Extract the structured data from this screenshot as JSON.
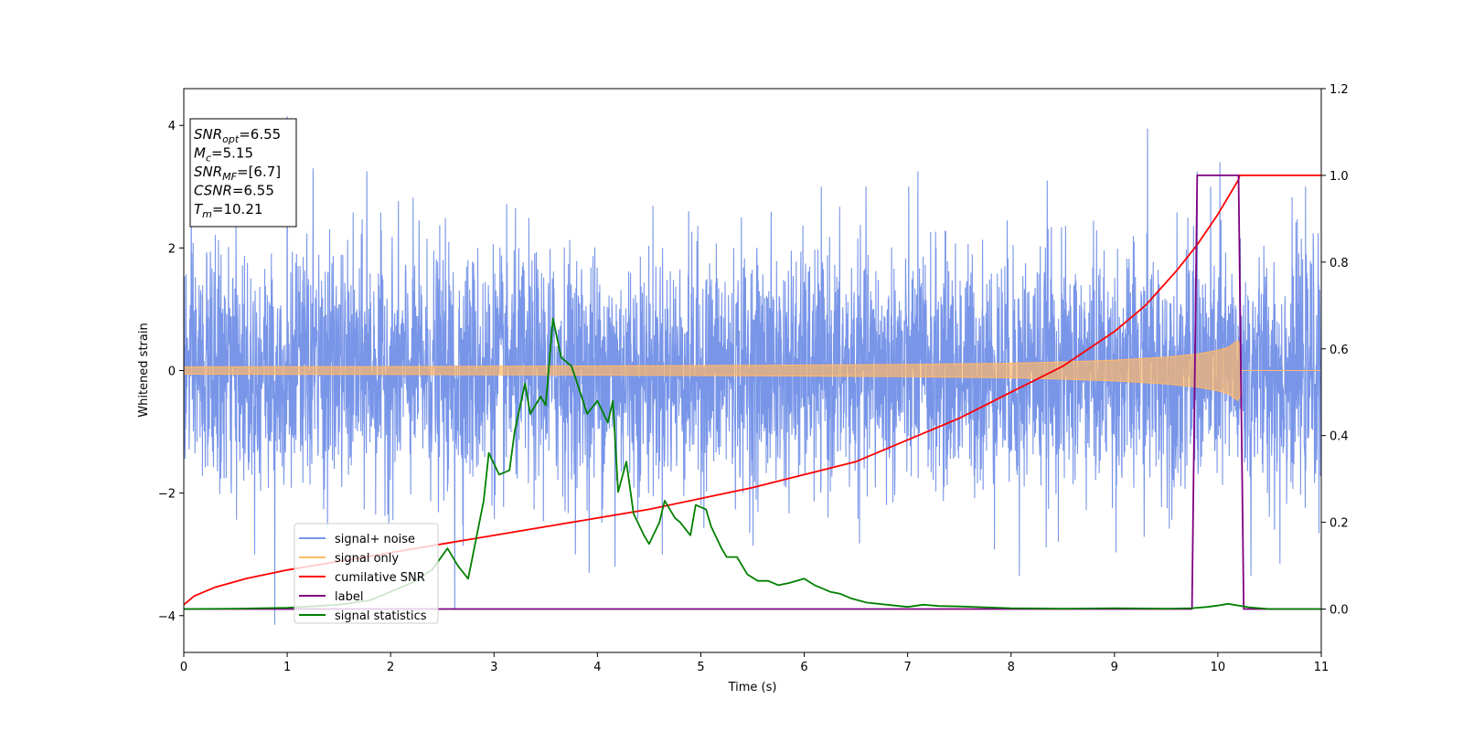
{
  "chart_data": {
    "type": "line",
    "xlabel": "Time (s)",
    "ylabel": "Whitened strain",
    "xlim": [
      0,
      11
    ],
    "ylim": [
      -4.6,
      4.6
    ],
    "y2lim": [
      -0.1,
      1.2
    ],
    "xticks": [
      "0",
      "1",
      "2",
      "3",
      "4",
      "5",
      "6",
      "7",
      "8",
      "9",
      "10",
      "11"
    ],
    "yticks": [
      "4",
      "2",
      "0",
      "−2",
      "−4"
    ],
    "y2ticks": [
      "1.2",
      "1.0",
      "0.8",
      "0.6",
      "0.4",
      "0.2",
      "0.0"
    ],
    "grid": false,
    "legend_position": "lower-left",
    "annotation": {
      "lines": [
        {
          "base": "SNR",
          "sub": "opt",
          "value": "=6.55"
        },
        {
          "base": "M",
          "sub": "c",
          "value": "=5.15"
        },
        {
          "base": "SNR",
          "sub": "MF",
          "value": "=[6.7]"
        },
        {
          "base": "CSNR",
          "sub": "",
          "value": "=6.55"
        },
        {
          "base": "T",
          "sub": "m",
          "value": "=10.21"
        }
      ]
    },
    "series": [
      {
        "name": "signal+ noise",
        "color": "#7895e8",
        "axis": "left",
        "noise_std": 1.0,
        "peaks": [
          {
            "x": 1.0,
            "y": 4.15
          },
          {
            "x": 0.88,
            "y": -4.15
          },
          {
            "x": 9.32,
            "y": 3.95
          },
          {
            "x": 10.02,
            "y": 3.4
          },
          {
            "x": 1.25,
            "y": 3.3
          },
          {
            "x": 1.77,
            "y": 3.25
          },
          {
            "x": 7.1,
            "y": 3.25
          },
          {
            "x": 2.62,
            "y": -3.9
          },
          {
            "x": 8.08,
            "y": -3.35
          },
          {
            "x": 10.32,
            "y": -3.35
          },
          {
            "x": 10.6,
            "y": -3.15
          },
          {
            "x": 4.17,
            "y": -3.2
          },
          {
            "x": 3.92,
            "y": -3.3
          },
          {
            "x": 9.8,
            "y": 3.25
          },
          {
            "x": 8.35,
            "y": 3.1
          }
        ]
      },
      {
        "name": "signal only",
        "color": "#ffb86a",
        "axis": "left",
        "envelope": {
          "x": [
            0,
            2,
            4,
            6,
            7,
            8,
            8.5,
            9,
            9.5,
            9.8,
            10.0,
            10.1,
            10.2,
            10.21,
            10.22,
            11
          ],
          "amplitude": [
            0.06,
            0.065,
            0.075,
            0.09,
            0.1,
            0.12,
            0.14,
            0.17,
            0.22,
            0.27,
            0.33,
            0.38,
            0.5,
            0.5,
            0,
            0
          ]
        }
      },
      {
        "name": "cumilative SNR",
        "color": "#ff0000",
        "axis": "right",
        "x": [
          0,
          0.1,
          0.3,
          0.6,
          1,
          1.5,
          2,
          2.5,
          3,
          3.5,
          4,
          4.5,
          5,
          5.5,
          6,
          6.5,
          7,
          7.5,
          8,
          8.5,
          9,
          9.3,
          9.6,
          9.8,
          10.0,
          10.1,
          10.2,
          10.21,
          11
        ],
        "y": [
          0.01,
          0.03,
          0.05,
          0.07,
          0.09,
          0.11,
          0.13,
          0.15,
          0.17,
          0.19,
          0.21,
          0.23,
          0.255,
          0.28,
          0.31,
          0.34,
          0.39,
          0.44,
          0.5,
          0.56,
          0.64,
          0.7,
          0.78,
          0.84,
          0.91,
          0.95,
          0.99,
          1.0,
          1.0
        ]
      },
      {
        "name": "label",
        "color": "#800080",
        "axis": "right",
        "x": [
          0,
          9.75,
          9.8,
          10.2,
          10.25,
          11
        ],
        "y": [
          0,
          0,
          1,
          1,
          0,
          0
        ]
      },
      {
        "name": "signal statistics",
        "color": "#008000",
        "axis": "right",
        "x": [
          0,
          0.5,
          1.0,
          1.5,
          1.8,
          2.0,
          2.2,
          2.4,
          2.55,
          2.65,
          2.75,
          2.8,
          2.9,
          2.95,
          3.05,
          3.15,
          3.2,
          3.3,
          3.35,
          3.45,
          3.5,
          3.57,
          3.65,
          3.75,
          3.82,
          3.9,
          4.0,
          4.1,
          4.15,
          4.2,
          4.28,
          4.35,
          4.45,
          4.5,
          4.6,
          4.65,
          4.75,
          4.8,
          4.9,
          4.95,
          5.05,
          5.1,
          5.2,
          5.25,
          5.35,
          5.45,
          5.55,
          5.65,
          5.75,
          5.85,
          6.0,
          6.1,
          6.25,
          6.35,
          6.45,
          6.6,
          6.8,
          7.0,
          7.15,
          7.3,
          7.5,
          7.75,
          8.0,
          8.5,
          9.0,
          9.5,
          9.75,
          9.9,
          10.0,
          10.1,
          10.3,
          10.5,
          11.0
        ],
        "y": [
          0.0,
          0.001,
          0.003,
          0.01,
          0.02,
          0.04,
          0.06,
          0.09,
          0.14,
          0.1,
          0.07,
          0.13,
          0.25,
          0.36,
          0.31,
          0.32,
          0.41,
          0.52,
          0.45,
          0.49,
          0.47,
          0.67,
          0.58,
          0.56,
          0.51,
          0.45,
          0.48,
          0.43,
          0.48,
          0.27,
          0.34,
          0.22,
          0.17,
          0.15,
          0.2,
          0.25,
          0.21,
          0.2,
          0.17,
          0.24,
          0.23,
          0.19,
          0.14,
          0.12,
          0.12,
          0.08,
          0.065,
          0.065,
          0.055,
          0.06,
          0.07,
          0.055,
          0.04,
          0.035,
          0.025,
          0.015,
          0.01,
          0.005,
          0.01,
          0.007,
          0.006,
          0.004,
          0.002,
          0.001,
          0.002,
          0.001,
          0.002,
          0.005,
          0.008,
          0.012,
          0.004,
          0.0,
          0.0
        ]
      }
    ]
  }
}
